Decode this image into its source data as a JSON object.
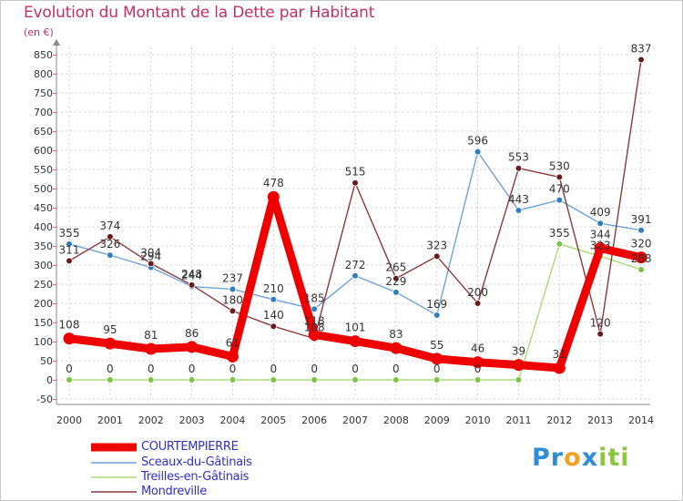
{
  "header": {
    "title": "Evolution du Montant de la Dette par Habitant",
    "unit": "(en €)"
  },
  "logo": {
    "letters": [
      {
        "ch": "P",
        "color": "#2f8fd6"
      },
      {
        "ch": "r",
        "color": "#2f8fd6"
      },
      {
        "ch": "o",
        "color": "#f4a020"
      },
      {
        "ch": "x",
        "color": "#2f8fd6"
      },
      {
        "ch": "i",
        "color": "#8cc63f"
      },
      {
        "ch": "t",
        "color": "#8cc63f"
      },
      {
        "ch": "i",
        "color": "#8cc63f"
      }
    ]
  },
  "chart_data": {
    "type": "line",
    "title": "Evolution du Montant de la Dette par Habitant",
    "ylabel": "(en €)",
    "xlabel": "",
    "x": [
      "2000",
      "2001",
      "2002",
      "2003",
      "2004",
      "2005",
      "2006",
      "2007",
      "2008",
      "2009",
      "2010",
      "2011",
      "2012",
      "2013",
      "2014"
    ],
    "ylim": [
      -50,
      850
    ],
    "yticks": [
      -50,
      0,
      50,
      100,
      150,
      200,
      250,
      300,
      350,
      400,
      450,
      500,
      550,
      600,
      650,
      700,
      750,
      800,
      850
    ],
    "grid": true,
    "legend_position": "bottom-left",
    "series": [
      {
        "name": "COURTEMPIERRE",
        "color": "#ee0000",
        "thick": true,
        "values": [
          108,
          95,
          81,
          86,
          61,
          478,
          118,
          101,
          83,
          55,
          46,
          39,
          31,
          344,
          320
        ],
        "labels": [
          "108",
          "95",
          "81",
          "86",
          "61",
          "478",
          "118",
          "101",
          "83",
          "55",
          "46",
          "39",
          "31",
          "344",
          "320"
        ]
      },
      {
        "name": "Sceaux-du-Gâtinais",
        "color": "#6fa3d6",
        "marker": "#2f7fc0",
        "values": [
          355,
          326,
          294,
          244,
          237,
          210,
          185,
          272,
          229,
          169,
          596,
          443,
          470,
          409,
          391
        ],
        "labels": [
          "355",
          "326",
          "294",
          "244",
          "237",
          "210",
          "185",
          "272",
          "229",
          "169",
          "596",
          "443",
          "470",
          "409",
          "391"
        ]
      },
      {
        "name": "Treilles-en-Gâtinais",
        "color": "#a8dc7a",
        "marker": "#7cc444",
        "values": [
          0,
          0,
          0,
          0,
          0,
          0,
          0,
          0,
          0,
          0,
          0,
          0,
          355,
          323,
          288
        ],
        "labels": [
          "0",
          "0",
          "0",
          "0",
          "0",
          "0",
          "0",
          "0",
          "0",
          "0",
          "0",
          "",
          "355",
          "323",
          "288"
        ]
      },
      {
        "name": "Mondreville",
        "color": "#8b3a3a",
        "marker": "#6b1a1a",
        "values": [
          311,
          374,
          304,
          248,
          180,
          140,
          108,
          515,
          265,
          323,
          200,
          553,
          530,
          120,
          837
        ],
        "labels": [
          "311",
          "374",
          "304",
          "248",
          "180",
          "140",
          "108",
          "515",
          "265",
          "323",
          "200",
          "553",
          "530",
          "120",
          "837"
        ]
      }
    ]
  }
}
